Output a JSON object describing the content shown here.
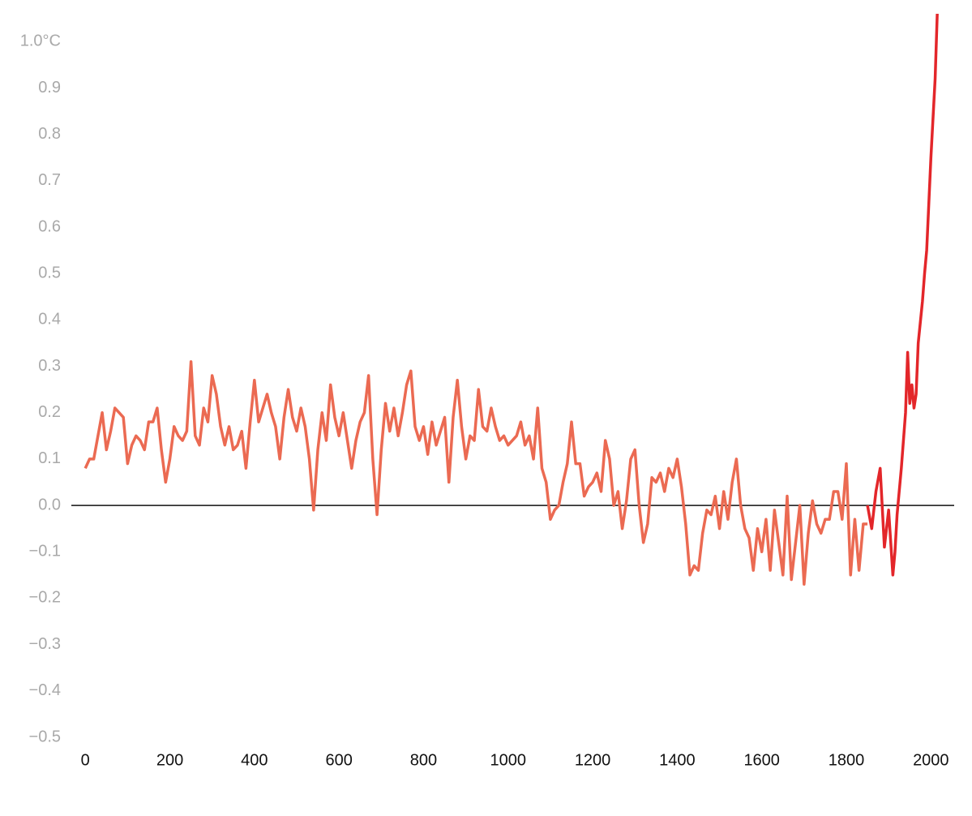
{
  "chart_data": {
    "type": "line",
    "series": [
      {
        "color": "#eb6a52",
        "x": [
          0,
          10,
          20,
          30,
          40,
          50,
          60,
          70,
          80,
          90,
          100,
          110,
          120,
          130,
          140,
          150,
          160,
          170,
          180,
          190,
          200,
          210,
          220,
          230,
          240,
          250,
          260,
          270,
          280,
          290,
          300,
          310,
          320,
          330,
          340,
          350,
          360,
          370,
          380,
          390,
          400,
          410,
          420,
          430,
          440,
          450,
          460,
          470,
          480,
          490,
          500,
          510,
          520,
          530,
          540,
          550,
          560,
          570,
          580,
          590,
          600,
          610,
          620,
          630,
          640,
          650,
          660,
          670,
          680,
          690,
          700,
          710,
          720,
          730,
          740,
          750,
          760,
          770,
          780,
          790,
          800,
          810,
          820,
          830,
          840,
          850,
          860,
          870,
          880,
          890,
          900,
          910,
          920,
          930,
          940,
          950,
          960,
          970,
          980,
          990,
          1000,
          1010,
          1020,
          1030,
          1040,
          1050,
          1060,
          1070,
          1080,
          1090,
          1100,
          1110,
          1120,
          1130,
          1140,
          1150,
          1160,
          1170,
          1180,
          1190,
          1200,
          1210,
          1220,
          1230,
          1240,
          1250,
          1260,
          1270,
          1280,
          1290,
          1300,
          1310,
          1320,
          1330,
          1340,
          1350,
          1360,
          1370,
          1380,
          1390,
          1400,
          1410,
          1420,
          1430,
          1440,
          1450,
          1460,
          1470,
          1480,
          1490,
          1500,
          1510,
          1520,
          1530,
          1540,
          1550,
          1560,
          1570,
          1580,
          1590,
          1600,
          1610,
          1620,
          1630,
          1640,
          1650,
          1660,
          1670,
          1680,
          1690,
          1700,
          1710,
          1720,
          1730,
          1740,
          1750,
          1760,
          1770,
          1780,
          1790,
          1800,
          1810,
          1820,
          1830,
          1840,
          1850
        ],
        "values": [
          0.08,
          0.1,
          0.1,
          0.15,
          0.2,
          0.12,
          0.16,
          0.21,
          0.2,
          0.19,
          0.09,
          0.13,
          0.15,
          0.14,
          0.12,
          0.18,
          0.18,
          0.21,
          0.12,
          0.05,
          0.1,
          0.17,
          0.15,
          0.14,
          0.16,
          0.31,
          0.15,
          0.13,
          0.21,
          0.18,
          0.28,
          0.24,
          0.17,
          0.13,
          0.17,
          0.12,
          0.13,
          0.16,
          0.08,
          0.18,
          0.27,
          0.18,
          0.21,
          0.24,
          0.2,
          0.17,
          0.1,
          0.19,
          0.25,
          0.19,
          0.16,
          0.21,
          0.17,
          0.1,
          -0.01,
          0.12,
          0.2,
          0.14,
          0.26,
          0.19,
          0.15,
          0.2,
          0.14,
          0.08,
          0.14,
          0.18,
          0.2,
          0.28,
          0.1,
          -0.02,
          0.12,
          0.22,
          0.16,
          0.21,
          0.15,
          0.2,
          0.26,
          0.29,
          0.17,
          0.14,
          0.17,
          0.11,
          0.18,
          0.13,
          0.16,
          0.19,
          0.05,
          0.19,
          0.27,
          0.17,
          0.1,
          0.15,
          0.14,
          0.25,
          0.17,
          0.16,
          0.21,
          0.17,
          0.14,
          0.15,
          0.13,
          0.14,
          0.15,
          0.18,
          0.13,
          0.15,
          0.1,
          0.21,
          0.08,
          0.05,
          -0.03,
          -0.01,
          0.0,
          0.05,
          0.09,
          0.18,
          0.09,
          0.09,
          0.02,
          0.04,
          0.05,
          0.07,
          0.03,
          0.14,
          0.1,
          0.0,
          0.03,
          -0.05,
          0.01,
          0.1,
          0.12,
          0.0,
          -0.08,
          -0.04,
          0.06,
          0.05,
          0.07,
          0.03,
          0.08,
          0.06,
          0.1,
          0.04,
          -0.04,
          -0.15,
          -0.13,
          -0.14,
          -0.06,
          -0.01,
          -0.02,
          0.02,
          -0.05,
          0.03,
          -0.03,
          0.05,
          0.1,
          0.0,
          -0.05,
          -0.07,
          -0.14,
          -0.05,
          -0.1,
          -0.03,
          -0.14,
          -0.01,
          -0.08,
          -0.15,
          0.02,
          -0.16,
          -0.08,
          0.0,
          -0.17,
          -0.06,
          0.01,
          -0.04,
          -0.06,
          -0.03,
          -0.03,
          0.03,
          0.03,
          -0.03,
          0.09,
          -0.15,
          -0.03,
          -0.14,
          -0.04,
          -0.04
        ]
      },
      {
        "color": "#e3262a",
        "x": [
          1850,
          1860,
          1870,
          1880,
          1890,
          1900,
          1910,
          1915,
          1920,
          1930,
          1940,
          1945,
          1950,
          1955,
          1960,
          1965,
          1970,
          1980,
          1985,
          1990,
          2000,
          2010,
          2015
        ],
        "values": [
          0,
          -0.05,
          0.03,
          0.08,
          -0.09,
          -0.01,
          -0.15,
          -0.1,
          -0.02,
          0.08,
          0.2,
          0.33,
          0.22,
          0.26,
          0.21,
          0.24,
          0.35,
          0.44,
          0.5,
          0.55,
          0.75,
          0.92,
          1.06
        ]
      }
    ],
    "xlim": [
      -33,
      2055
    ],
    "xticks": [
      0,
      200,
      400,
      600,
      800,
      1000,
      1200,
      1400,
      1600,
      1800,
      2000
    ],
    "ylim": [
      -0.5,
      1.06
    ],
    "yticks": [
      {
        "value": -0.5,
        "label": "−0.5"
      },
      {
        "value": -0.4,
        "label": "−0.4"
      },
      {
        "value": -0.3,
        "label": "−0.3"
      },
      {
        "value": -0.2,
        "label": "−0.2"
      },
      {
        "value": -0.1,
        "label": "−0.1"
      },
      {
        "value": 0,
        "label": "0.0"
      },
      0.1,
      0.2,
      0.3,
      0.4,
      0.5,
      0.6,
      0.7,
      0.8,
      0.9,
      {
        "value": 1,
        "label": "1.0°C"
      }
    ],
    "zero_line": true
  }
}
